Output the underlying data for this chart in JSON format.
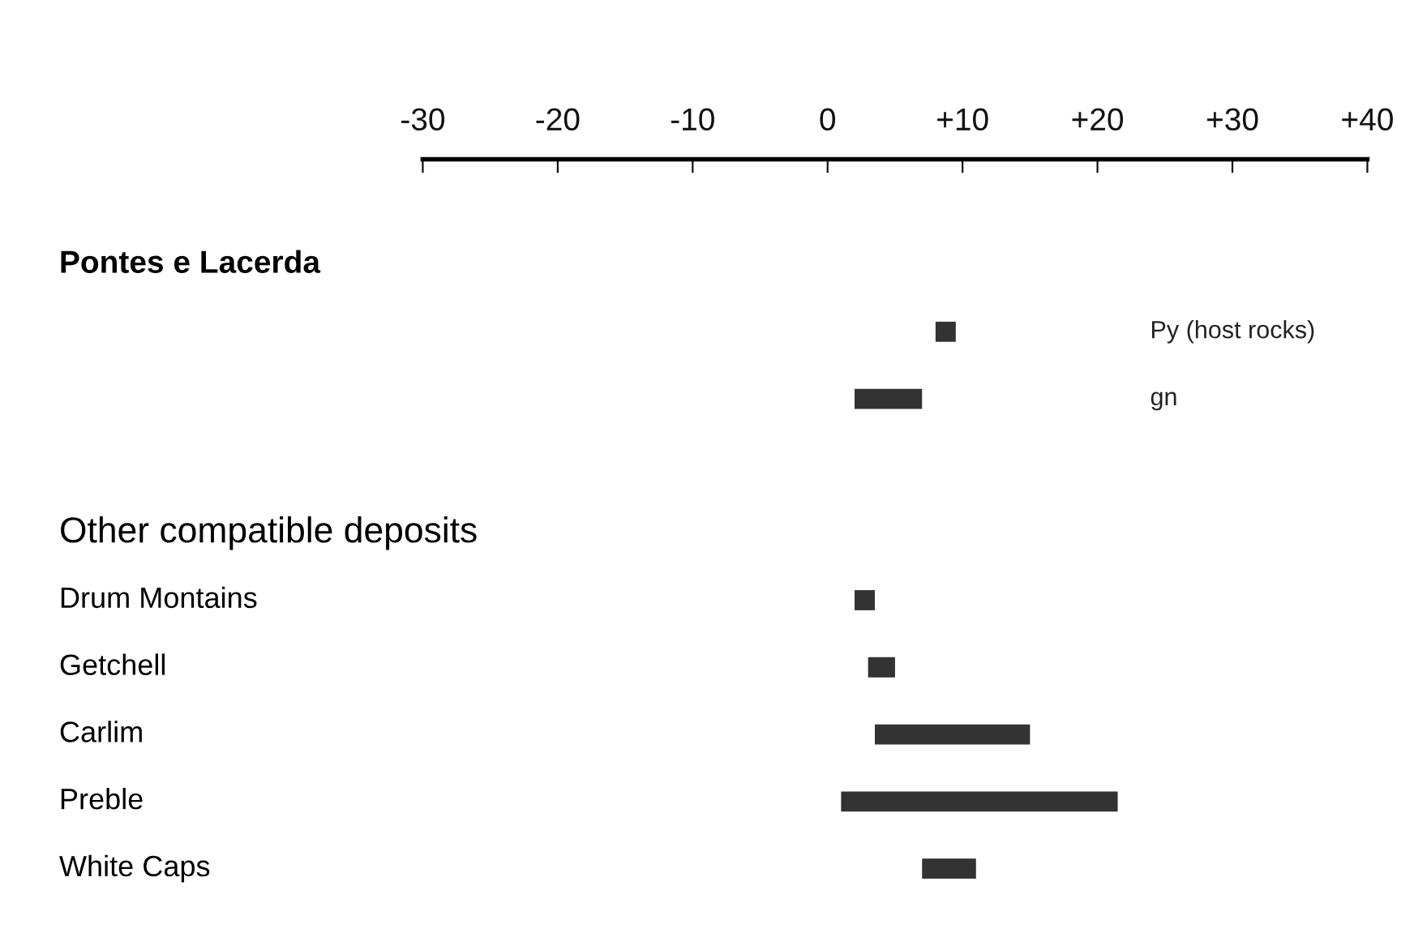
{
  "chart_data": {
    "type": "bar",
    "orientation": "horizontal",
    "categories": [
      "Pontes e Lacerda",
      null,
      null,
      null,
      "Other compatible deposits",
      "Drum Montains",
      "Getchell",
      "Carlim",
      "Preble",
      "White Caps"
    ],
    "series": [
      {
        "name": "Py (host rocks)",
        "color": "#333333",
        "base": [
          null,
          8,
          null,
          null,
          null,
          null,
          null,
          null,
          null,
          null
        ],
        "values": [
          null,
          1.5,
          null,
          null,
          null,
          null,
          null,
          null,
          null,
          null
        ]
      },
      {
        "name": "gn",
        "color": "#333333",
        "base": [
          null,
          null,
          2,
          null,
          null,
          null,
          null,
          null,
          null,
          null
        ],
        "values": [
          null,
          null,
          5,
          null,
          null,
          null,
          null,
          null,
          null,
          null
        ]
      },
      {
        "color": "#333333",
        "base": [
          null,
          null,
          null,
          null,
          null,
          2,
          3,
          3.5,
          1,
          7
        ],
        "values": [
          null,
          null,
          null,
          null,
          null,
          1.5,
          2,
          11.5,
          20.5,
          4
        ]
      }
    ],
    "xlim": [
      -30,
      40
    ],
    "xticks": [
      -30,
      -20,
      -10,
      0,
      {
        "value": 10,
        "label": "+10"
      },
      {
        "value": 20,
        "label": "+20"
      },
      {
        "value": 30,
        "label": "+30"
      },
      {
        "value": 40,
        "label": "+40"
      }
    ],
    "grid": false,
    "legend": false
  }
}
